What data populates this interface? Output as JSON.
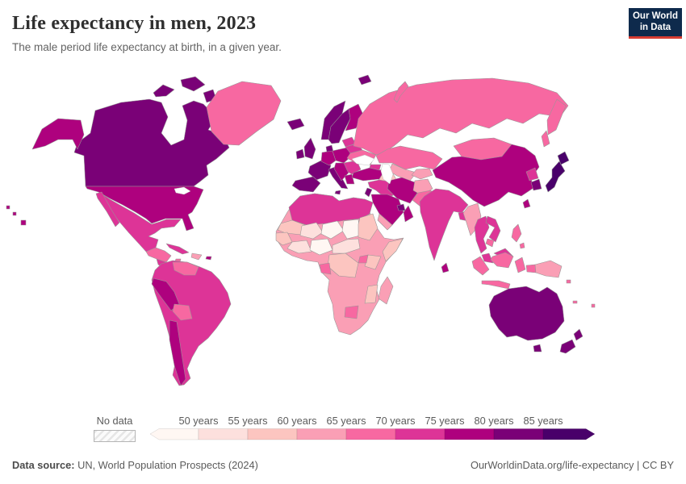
{
  "header": {
    "title": "Life expectancy in men, 2023",
    "subtitle": "The male period life expectancy at birth, in a given year."
  },
  "logo": {
    "line1": "Our World",
    "line2": "in Data",
    "bg": "#0E2A4C",
    "accent": "#D73C32"
  },
  "legend": {
    "no_data_label": "No data",
    "ticks": [
      "50 years",
      "55 years",
      "60 years",
      "65 years",
      "70 years",
      "75 years",
      "80 years",
      "85 years"
    ],
    "bins": [
      "lt50",
      "50-55",
      "55-60",
      "60-65",
      "65-70",
      "70-75",
      "75-80",
      "80-85",
      "gt85"
    ]
  },
  "footer": {
    "source_label": "Data source:",
    "source_text": " UN, World Population Prospects (2024)",
    "right_text": "OurWorldinData.org/life-expectancy | CC BY"
  },
  "chart_data": {
    "type": "choropleth",
    "title": "Life expectancy in men",
    "year": 2023,
    "unit": "years",
    "legend_position": "bottom",
    "bin_labels": {
      "lt50": "<50 years",
      "50-55": "50-55 years",
      "55-60": "55-60 years",
      "60-65": "60-65 years",
      "65-70": "65-70 years",
      "70-75": "70-75 years",
      "75-80": "75-80 years",
      "80-85": "80-85 years",
      "gt85": ">85 years"
    },
    "palette": {
      "lt50": "#fff7f3",
      "50-55": "#fde0dd",
      "55-60": "#fcc5c0",
      "60-65": "#fa9fb5",
      "65-70": "#f768a1",
      "70-75": "#dd3497",
      "75-80": "#ae017e",
      "80-85": "#7a0177",
      "gt85": "#49006a"
    },
    "regions": {
      "canada": "80-85",
      "usa": "75-80",
      "mexico": "70-75",
      "greenland": "65-70",
      "iceland": "80-85",
      "central-america-n": "65-70",
      "central-america-s": "70-75",
      "cuba": "70-75",
      "hispaniola": "60-65",
      "jamaica": "65-70",
      "puerto-rico": "75-80",
      "south-america-base": "70-75",
      "venezuela": "65-70",
      "peru": "75-80",
      "bolivia": "65-70",
      "chile": "75-80",
      "norway": "80-85",
      "sweden": "80-85",
      "finland": "75-80",
      "denmark": "80-85",
      "uk": "80-85",
      "ireland": "80-85",
      "france": "80-85",
      "iberia": "80-85",
      "germany": "75-80",
      "central-europe": "75-80",
      "italy": "80-85",
      "balkans": "75-80",
      "romania-bulgaria": "70-75",
      "greece": "75-80",
      "baltics": "70-75",
      "belarus": "70-75",
      "ukraine": "65-70",
      "russia": "65-70",
      "kazakhstan": "65-70",
      "uzbekistan": "60-65",
      "turkmenistan": "55-60",
      "kyrgyzstan": "60-65",
      "caucasus": "70-75",
      "turkey": "75-80",
      "syria-iraq": "70-75",
      "israel-jordan": "80-85",
      "iran": "75-80",
      "afghanistan": "60-65",
      "pakistan": "65-70",
      "saudi-arabia": "75-80",
      "yemen": "60-65",
      "oman": "75-80",
      "gulf-states": "80-85",
      "africa-base": "60-65",
      "north-africa": "70-75",
      "mauritania": "55-60",
      "mali": "50-55",
      "niger": "lt50",
      "chad": "lt50",
      "sudan": "55-60",
      "senegal-guinea": "55-60",
      "ghana-ivory": "50-55",
      "nigeria": "lt50",
      "cameroon-car": "50-55",
      "somalia": "55-60",
      "kenya": "55-60",
      "uganda": "65-70",
      "drc": "55-60",
      "gabon-congo": "65-70",
      "botswana": "65-70",
      "mozambique": "55-60",
      "madagascar": "60-65",
      "mongolia": "65-70",
      "china": "75-80",
      "north-korea": "70-75",
      "south-korea": "80-85",
      "japan": "gt85",
      "taiwan": "75-80",
      "india": "70-75",
      "sri-lanka": "75-80",
      "bangladesh": "70-75",
      "myanmar": "60-65",
      "thailand": "70-75",
      "vietnam-laos": "70-75",
      "cambodia": "65-70",
      "malaysia": "70-75",
      "indonesia": "65-70",
      "png": "60-65",
      "philippines": "65-70",
      "australia": "80-85",
      "new-zealand": "80-85",
      "pacific-islands": "65-70"
    }
  }
}
